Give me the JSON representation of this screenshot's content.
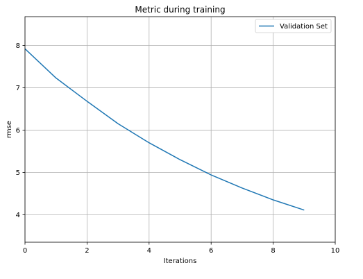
{
  "chart_data": {
    "type": "line",
    "title": "Metric during training",
    "xlabel": "Iterations",
    "ylabel": "rmse",
    "xlim": [
      0,
      10
    ],
    "ylim": [
      3.35,
      8.68
    ],
    "xticks": [
      0,
      2,
      4,
      6,
      8,
      10
    ],
    "yticks": [
      4,
      5,
      6,
      7,
      8
    ],
    "grid": true,
    "legend_position": "top-right",
    "series": [
      {
        "name": "Validation Set",
        "color": "#1f77b4",
        "x": [
          0,
          1,
          2,
          3,
          4,
          5,
          6,
          7,
          8,
          9
        ],
        "y": [
          7.92,
          7.23,
          6.68,
          6.15,
          5.7,
          5.3,
          4.94,
          4.63,
          4.35,
          4.11
        ]
      }
    ]
  }
}
